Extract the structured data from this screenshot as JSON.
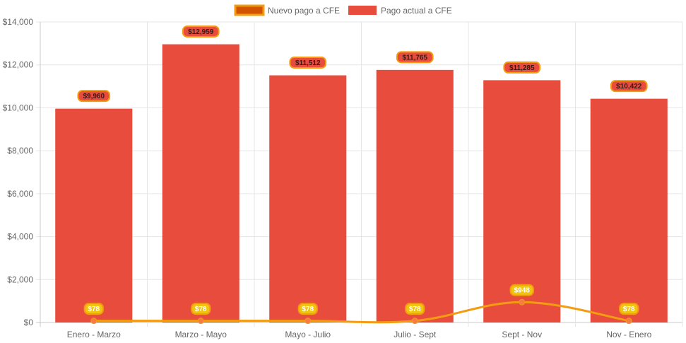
{
  "chart_data": {
    "type": "bar",
    "categories": [
      "Enero - Marzo",
      "Marzo - Mayo",
      "Mayo - Julio",
      "Julio - Sept",
      "Sept - Nov",
      "Nov - Enero"
    ],
    "ylim": [
      0,
      14000
    ],
    "yticks": [
      0,
      2000,
      4000,
      6000,
      8000,
      10000,
      12000,
      14000
    ],
    "ytick_labels": [
      "$0",
      "$2,000",
      "$4,000",
      "$6,000",
      "$8,000",
      "$10,000",
      "$12,000",
      "$14,000"
    ],
    "grid": true,
    "legend_position": "top-center",
    "series": [
      {
        "name": "Nuevo pago a CFE",
        "kind": "line",
        "color": "#f39c12",
        "fill": "#d35400",
        "values": [
          78,
          78,
          78,
          78,
          948,
          78
        ],
        "labels": [
          "$78",
          "$78",
          "$78",
          "$78",
          "$948",
          "$78"
        ]
      },
      {
        "name": "Pago actual a CFE",
        "kind": "bar",
        "color": "#e74c3c",
        "values": [
          9960,
          12959,
          11512,
          11765,
          11285,
          10422
        ],
        "labels": [
          "$9,960",
          "$12,959",
          "$11,512",
          "$11,765",
          "$11,285",
          "$10,422"
        ]
      }
    ]
  }
}
